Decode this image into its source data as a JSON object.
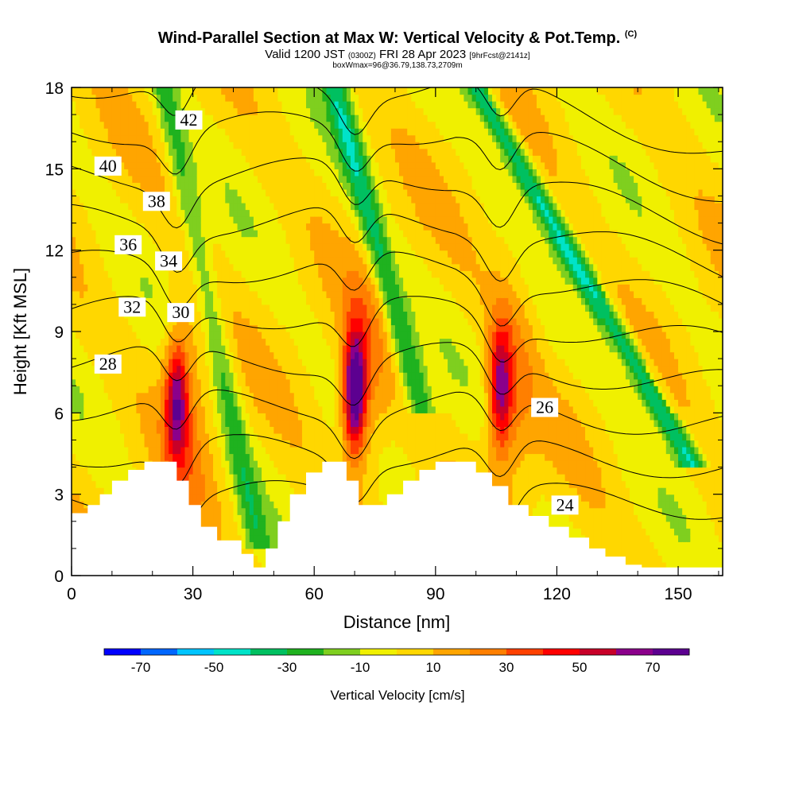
{
  "header": {
    "title": "Wind-Parallel Section at Max W: Vertical Velocity & Pot.Temp.",
    "title_mark": "(C)",
    "valid_pre": "Valid 1200 JST",
    "valid_utc": "(0300Z)",
    "valid_date": "FRI 28 Apr 2023",
    "forecast": "[9hrFcst@2141z]",
    "box_info": "boxWmax=96@36.79,138.73,2709m"
  },
  "chart_data": {
    "type": "heatmap",
    "xlabel": "Distance [nm]",
    "ylabel": "Height [Kft MSL]",
    "xlim": [
      0,
      161
    ],
    "ylim": [
      0,
      18
    ],
    "x_ticks": [
      0,
      30,
      60,
      90,
      120,
      150
    ],
    "y_ticks": [
      0,
      3,
      6,
      9,
      12,
      15,
      18
    ],
    "colorbar": {
      "label": "Vertical Velocity [cm/s]",
      "tick_labels": [
        -70,
        -50,
        -30,
        -10,
        10,
        30,
        50,
        70
      ],
      "bins": [
        -80,
        -70,
        -60,
        -50,
        -40,
        -30,
        -20,
        -10,
        0,
        10,
        20,
        30,
        40,
        50,
        60,
        70,
        80
      ],
      "colors": [
        "#0000ff",
        "#0066ff",
        "#00c4ff",
        "#00e3c8",
        "#00c060",
        "#1fb21f",
        "#7fcf1f",
        "#f0f000",
        "#ffd700",
        "#ffa500",
        "#ff7f00",
        "#ff4000",
        "#ff0000",
        "#c80028",
        "#8b008b",
        "#5c0090"
      ]
    },
    "terrain_nm_kft": [
      [
        0,
        2.3
      ],
      [
        4,
        2.3
      ],
      [
        4,
        2.6
      ],
      [
        7,
        2.6
      ],
      [
        7,
        3.0
      ],
      [
        10,
        3.0
      ],
      [
        10,
        3.5
      ],
      [
        14,
        3.5
      ],
      [
        14,
        3.9
      ],
      [
        18,
        3.9
      ],
      [
        18,
        4.2
      ],
      [
        26,
        4.2
      ],
      [
        26,
        3.5
      ],
      [
        29,
        3.5
      ],
      [
        29,
        2.6
      ],
      [
        32,
        2.6
      ],
      [
        32,
        1.8
      ],
      [
        36,
        1.8
      ],
      [
        36,
        1.3
      ],
      [
        42,
        1.3
      ],
      [
        42,
        0.8
      ],
      [
        45,
        0.8
      ],
      [
        45,
        0.3
      ],
      [
        48,
        0.3
      ],
      [
        48,
        1.0
      ],
      [
        51,
        1.0
      ],
      [
        51,
        2.0
      ],
      [
        54,
        2.0
      ],
      [
        54,
        3.0
      ],
      [
        58,
        3.0
      ],
      [
        58,
        3.8
      ],
      [
        62,
        3.8
      ],
      [
        62,
        4.2
      ],
      [
        68,
        4.2
      ],
      [
        68,
        3.5
      ],
      [
        71,
        3.5
      ],
      [
        71,
        2.6
      ],
      [
        78,
        2.6
      ],
      [
        78,
        3.0
      ],
      [
        82,
        3.0
      ],
      [
        82,
        3.5
      ],
      [
        86,
        3.5
      ],
      [
        86,
        3.9
      ],
      [
        90,
        3.9
      ],
      [
        90,
        4.2
      ],
      [
        100,
        4.2
      ],
      [
        100,
        3.8
      ],
      [
        104,
        3.8
      ],
      [
        104,
        3.3
      ],
      [
        108,
        3.3
      ],
      [
        108,
        2.6
      ],
      [
        113,
        2.6
      ],
      [
        113,
        2.2
      ],
      [
        118,
        2.2
      ],
      [
        118,
        1.8
      ],
      [
        123,
        1.8
      ],
      [
        123,
        1.4
      ],
      [
        128,
        1.4
      ],
      [
        128,
        1.0
      ],
      [
        132,
        1.0
      ],
      [
        132,
        0.7
      ],
      [
        137,
        0.7
      ],
      [
        137,
        0.4
      ],
      [
        141,
        0.4
      ],
      [
        141,
        0.3
      ],
      [
        161,
        0.3
      ]
    ],
    "updraft_cores": [
      {
        "x": 26,
        "z": 6.5,
        "w": 55
      },
      {
        "x": 70,
        "z": 6.8,
        "w": 80
      },
      {
        "x": 106,
        "z": 6.9,
        "w": 55
      }
    ],
    "downdraft_bands": [
      {
        "x_start": 23,
        "x_end": 45,
        "z_start": 18,
        "z_end": 2,
        "w": -25
      },
      {
        "x_start": 65,
        "x_end": 85,
        "z_start": 18,
        "z_end": 7,
        "w": -35
      },
      {
        "x_start": 100,
        "x_end": 150,
        "z_start": 18,
        "z_end": 5,
        "w": -45
      }
    ],
    "theta_isentropes": [
      {
        "theta": 24,
        "label_nm": 122,
        "label_kft": 2.6
      },
      {
        "theta": 26,
        "label_nm": 117,
        "label_kft": 6.2
      },
      {
        "theta": 28,
        "label_nm": 9,
        "label_kft": 7.8
      },
      {
        "theta": 30,
        "label_nm": 27,
        "label_kft": 9.7
      },
      {
        "theta": 32,
        "label_nm": 15,
        "label_kft": 9.9
      },
      {
        "theta": 34,
        "label_nm": 24,
        "label_kft": 11.6
      },
      {
        "theta": 36,
        "label_nm": 14,
        "label_kft": 12.2
      },
      {
        "theta": 38,
        "label_nm": 21,
        "label_kft": 13.8
      },
      {
        "theta": 40,
        "label_nm": 9,
        "label_kft": 15.1
      },
      {
        "theta": 42,
        "label_nm": 29,
        "label_kft": 16.8
      }
    ]
  }
}
